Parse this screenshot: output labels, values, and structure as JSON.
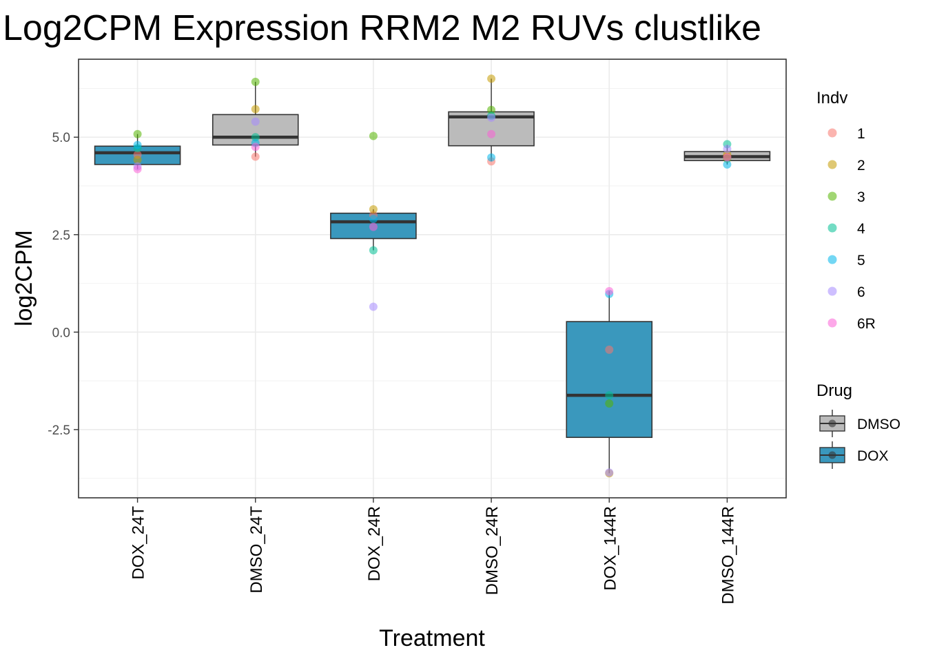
{
  "chart_data": {
    "type": "boxplot",
    "title": "Log2CPM Expression RRM2 M2 RUVs clustlike",
    "xlabel": "Treatment",
    "ylabel": "log2CPM",
    "ylim": [
      -4.25,
      7.0
    ],
    "yticks": [
      -2.5,
      0.0,
      2.5,
      5.0
    ],
    "ytick_labels": [
      "-2.5",
      "0.0",
      "2.5",
      "5.0"
    ],
    "minor_grid": [
      -3.75,
      -1.25,
      1.25,
      3.75,
      6.25
    ],
    "grid": true,
    "categories": [
      "DOX_24T",
      "DMSO_24T",
      "DOX_24R",
      "DMSO_24R",
      "DOX_144R",
      "DMSO_144R"
    ],
    "drug": [
      "DOX",
      "DMSO",
      "DOX",
      "DMSO",
      "DOX",
      "DMSO"
    ],
    "boxes": [
      {
        "category": "DOX_24T",
        "drug": "DOX",
        "low": 4.18,
        "q1": 4.3,
        "median": 4.6,
        "q3": 4.77,
        "high": 5.08
      },
      {
        "category": "DMSO_24T",
        "drug": "DMSO",
        "low": 4.5,
        "q1": 4.8,
        "median": 5.0,
        "q3": 5.58,
        "high": 6.42
      },
      {
        "category": "DOX_24R",
        "drug": "DOX",
        "low": 2.1,
        "q1": 2.4,
        "median": 2.83,
        "q3": 3.05,
        "high": 3.15,
        "outliers": [
          5.03,
          0.65
        ]
      },
      {
        "category": "DMSO_24R",
        "drug": "DMSO",
        "low": 4.38,
        "q1": 4.78,
        "median": 5.52,
        "q3": 5.65,
        "high": 6.5
      },
      {
        "category": "DOX_144R",
        "drug": "DOX",
        "low": -3.62,
        "q1": -2.7,
        "median": -1.62,
        "q3": 0.27,
        "high": 1.05
      },
      {
        "category": "DMSO_144R",
        "drug": "DMSO",
        "low": 4.3,
        "q1": 4.4,
        "median": 4.5,
        "q3": 4.63,
        "high": 4.8
      }
    ],
    "points": [
      {
        "category": "DOX_24T",
        "indv": "1",
        "value": 4.55
      },
      {
        "category": "DOX_24T",
        "indv": "2",
        "value": 4.42
      },
      {
        "category": "DOX_24T",
        "indv": "3",
        "value": 5.08
      },
      {
        "category": "DOX_24T",
        "indv": "4",
        "value": 4.72
      },
      {
        "category": "DOX_24T",
        "indv": "5",
        "value": 4.8
      },
      {
        "category": "DOX_24T",
        "indv": "6",
        "value": 4.25
      },
      {
        "category": "DOX_24T",
        "indv": "6R",
        "value": 4.18
      },
      {
        "category": "DMSO_24T",
        "indv": "1",
        "value": 4.5
      },
      {
        "category": "DMSO_24T",
        "indv": "2",
        "value": 5.72
      },
      {
        "category": "DMSO_24T",
        "indv": "3",
        "value": 6.42
      },
      {
        "category": "DMSO_24T",
        "indv": "4",
        "value": 5.0
      },
      {
        "category": "DMSO_24T",
        "indv": "5",
        "value": 4.85
      },
      {
        "category": "DMSO_24T",
        "indv": "6",
        "value": 5.4
      },
      {
        "category": "DMSO_24T",
        "indv": "6R",
        "value": 4.75
      },
      {
        "category": "DOX_24R",
        "indv": "1",
        "value": 3.0
      },
      {
        "category": "DOX_24R",
        "indv": "2",
        "value": 3.15
      },
      {
        "category": "DOX_24R",
        "indv": "3",
        "value": 5.03
      },
      {
        "category": "DOX_24R",
        "indv": "4",
        "value": 2.1
      },
      {
        "category": "DOX_24R",
        "indv": "5",
        "value": 2.9
      },
      {
        "category": "DOX_24R",
        "indv": "6",
        "value": 0.65
      },
      {
        "category": "DOX_24R",
        "indv": "6R",
        "value": 2.7
      },
      {
        "category": "DMSO_24R",
        "indv": "1",
        "value": 4.38
      },
      {
        "category": "DMSO_24R",
        "indv": "2",
        "value": 6.5
      },
      {
        "category": "DMSO_24R",
        "indv": "3",
        "value": 5.7
      },
      {
        "category": "DMSO_24R",
        "indv": "4",
        "value": 5.55
      },
      {
        "category": "DMSO_24R",
        "indv": "5",
        "value": 4.48
      },
      {
        "category": "DMSO_24R",
        "indv": "6",
        "value": 5.5
      },
      {
        "category": "DMSO_24R",
        "indv": "6R",
        "value": 5.08
      },
      {
        "category": "DOX_144R",
        "indv": "1",
        "value": -0.45
      },
      {
        "category": "DOX_144R",
        "indv": "2",
        "value": -3.62
      },
      {
        "category": "DOX_144R",
        "indv": "3",
        "value": -1.83
      },
      {
        "category": "DOX_144R",
        "indv": "4",
        "value": -1.62
      },
      {
        "category": "DOX_144R",
        "indv": "5",
        "value": 0.98
      },
      {
        "category": "DOX_144R",
        "indv": "6",
        "value": -3.6
      },
      {
        "category": "DOX_144R",
        "indv": "6R",
        "value": 1.05
      },
      {
        "category": "DMSO_144R",
        "indv": "1",
        "value": 4.5
      },
      {
        "category": "DMSO_144R",
        "indv": "2",
        "value": 4.55
      },
      {
        "category": "DMSO_144R",
        "indv": "3",
        "value": 4.45
      },
      {
        "category": "DMSO_144R",
        "indv": "4",
        "value": 4.82
      },
      {
        "category": "DMSO_144R",
        "indv": "5",
        "value": 4.3
      },
      {
        "category": "DMSO_144R",
        "indv": "6",
        "value": 4.7
      },
      {
        "category": "DMSO_144R",
        "indv": "6R",
        "value": 4.48
      }
    ],
    "legend_indv": {
      "title": "Indv",
      "placement": "right",
      "entries": [
        {
          "label": "1",
          "color": "#F8766D"
        },
        {
          "label": "2",
          "color": "#C49A00"
        },
        {
          "label": "3",
          "color": "#53B400"
        },
        {
          "label": "4",
          "color": "#00C094"
        },
        {
          "label": "5",
          "color": "#00B6EB"
        },
        {
          "label": "6",
          "color": "#A58AFF"
        },
        {
          "label": "6R",
          "color": "#FB61D7"
        }
      ]
    },
    "legend_drug": {
      "title": "Drug",
      "placement": "right",
      "entries": [
        {
          "label": "DMSO",
          "color": "#BBBBBB"
        },
        {
          "label": "DOX",
          "color": "#3A98BD"
        }
      ]
    }
  }
}
